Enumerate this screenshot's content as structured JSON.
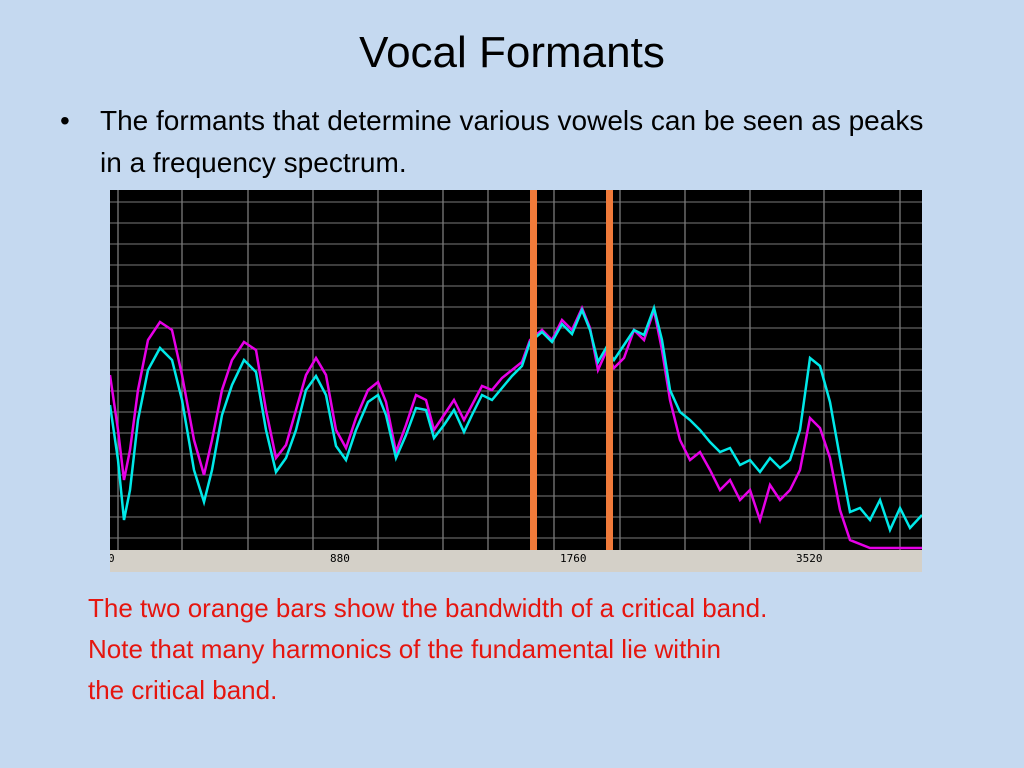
{
  "slide": {
    "title": "Vocal Formants",
    "bullet_glyph": "•",
    "bullet_text": "The formants that determine various vowels can be seen as peaks in a frequency spectrum.",
    "caption_lines": [
      "The two orange bars show the bandwidth of a critical band.",
      "Note that many harmonics of the fundamental lie within",
      "the critical band."
    ]
  },
  "spectrum": {
    "x_tick_labels": [
      "0",
      "880",
      "1760",
      "3520"
    ],
    "colors": {
      "background": "#000000",
      "grid": "#7a7a7a",
      "axis_strip": "#d4d0c8",
      "series_1": "#e600e6",
      "series_2": "#00e8e8",
      "critical_band": "#f07a3a"
    }
  }
}
